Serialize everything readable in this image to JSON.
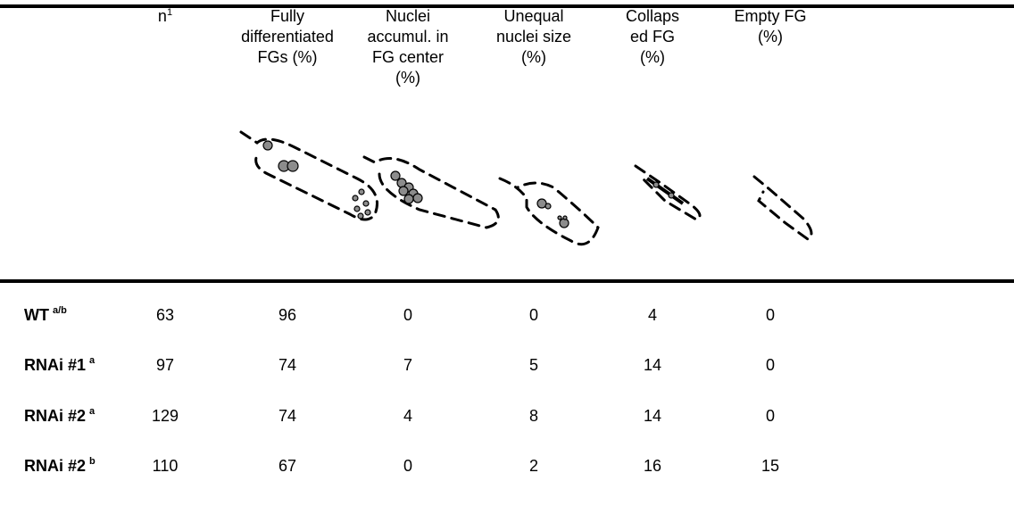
{
  "table": {
    "columns": [
      {
        "lines": [
          "n"
        ],
        "sup": "1"
      },
      {
        "lines": [
          "Fully",
          "differentiated",
          "FGs (%)"
        ]
      },
      {
        "lines": [
          "Nuclei",
          "accumul. in",
          "FG center",
          "(%)"
        ]
      },
      {
        "lines": [
          "Unequal",
          "nuclei size",
          "(%)"
        ]
      },
      {
        "lines": [
          "Collaps",
          "ed FG",
          "(%)"
        ]
      },
      {
        "lines": [
          "Empty FG",
          "(%)"
        ]
      }
    ],
    "rows": [
      {
        "label": "WT",
        "sup": "a/b",
        "values": [
          63,
          96,
          0,
          0,
          4,
          0
        ]
      },
      {
        "label": "RNAi #1",
        "sup": "a",
        "values": [
          97,
          74,
          7,
          5,
          14,
          0
        ]
      },
      {
        "label": "RNAi #2",
        "sup": "a",
        "values": [
          129,
          74,
          4,
          8,
          14,
          0
        ]
      },
      {
        "label": "RNAi #2",
        "sup": "b",
        "values": [
          110,
          67,
          0,
          2,
          16,
          15
        ]
      }
    ]
  }
}
